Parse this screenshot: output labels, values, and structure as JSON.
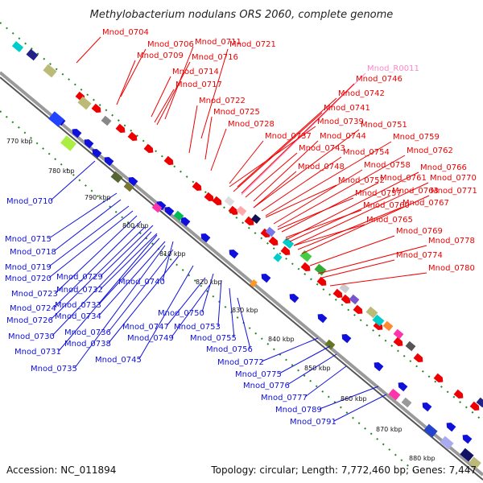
{
  "title": "Methylobacterium nodulans ORS 2060, complete genome",
  "footer": {
    "accession": "Accession: NC_011894",
    "summary": "Topology: circular; Length: 7,772,460 bp; Genes: 7,447"
  },
  "colors": {
    "forward": "#ee0000",
    "reverse": "#1010dd",
    "rna": "#ff88cc",
    "backbone": "#888888",
    "ticks": "#228822"
  },
  "kbp_labels": [
    "770 kbp",
    "780 kbp",
    "790 kbp",
    "800 kbp",
    "810 kbp",
    "820 kbp",
    "830 kbp",
    "840 kbp",
    "850 kbp",
    "860 kbp",
    "870 kbp",
    "880 kbp"
  ],
  "forward_labels": [
    {
      "text": "Mnod_0704",
      "type": "cds"
    },
    {
      "text": "Mnod_0706",
      "type": "cds"
    },
    {
      "text": "Mnod_0711",
      "type": "cds"
    },
    {
      "text": "Mnod_0721",
      "type": "cds"
    },
    {
      "text": "Mnod_0709",
      "type": "cds"
    },
    {
      "text": "Mnod_0716",
      "type": "cds"
    },
    {
      "text": "Mnod_0714",
      "type": "cds"
    },
    {
      "text": "Mnod_0717",
      "type": "cds"
    },
    {
      "text": "Mnod_R0011",
      "type": "rna"
    },
    {
      "text": "Mnod_0746",
      "type": "cds"
    },
    {
      "text": "Mnod_0742",
      "type": "cds"
    },
    {
      "text": "Mnod_0722",
      "type": "cds"
    },
    {
      "text": "Mnod_0741",
      "type": "cds"
    },
    {
      "text": "Mnod_0725",
      "type": "cds"
    },
    {
      "text": "Mnod_0739",
      "type": "cds"
    },
    {
      "text": "Mnod_0728",
      "type": "cds"
    },
    {
      "text": "Mnod_0751",
      "type": "cds"
    },
    {
      "text": "Mnod_0737",
      "type": "cds"
    },
    {
      "text": "Mnod_0744",
      "type": "cds"
    },
    {
      "text": "Mnod_0759",
      "type": "cds"
    },
    {
      "text": "Mnod_0743",
      "type": "cds"
    },
    {
      "text": "Mnod_0754",
      "type": "cds"
    },
    {
      "text": "Mnod_0762",
      "type": "cds"
    },
    {
      "text": "Mnod_0748",
      "type": "cds"
    },
    {
      "text": "Mnod_0758",
      "type": "cds"
    },
    {
      "text": "Mnod_0766",
      "type": "cds"
    },
    {
      "text": "Mnod_0752",
      "type": "cds"
    },
    {
      "text": "Mnod_0761",
      "type": "cds"
    },
    {
      "text": "Mnod_0770",
      "type": "cds"
    },
    {
      "text": "Mnod_0757",
      "type": "cds"
    },
    {
      "text": "Mnod_0763",
      "type": "cds"
    },
    {
      "text": "Mnod_0771",
      "type": "cds"
    },
    {
      "text": "Mnod_0760",
      "type": "cds"
    },
    {
      "text": "Mnod_0767",
      "type": "cds"
    },
    {
      "text": "Mnod_0765",
      "type": "cds"
    },
    {
      "text": "Mnod_0769",
      "type": "cds"
    },
    {
      "text": "Mnod_0778",
      "type": "cds"
    },
    {
      "text": "Mnod_0774",
      "type": "cds"
    },
    {
      "text": "Mnod_0780",
      "type": "cds"
    }
  ],
  "reverse_labels": [
    "Mnod_0710",
    "Mnod_0715",
    "Mnod_0718",
    "Mnod_0719",
    "Mnod_0720",
    "Mnod_0729",
    "Mnod_0732",
    "Mnod_0740",
    "Mnod_0723",
    "Mnod_0733",
    "Mnod_0724",
    "Mnod_0734",
    "Mnod_0726",
    "Mnod_0750",
    "Mnod_0747",
    "Mnod_0753",
    "Mnod_0736",
    "Mnod_0730",
    "Mnod_0749",
    "Mnod_0755",
    "Mnod_0738",
    "Mnod_0731",
    "Mnod_0756",
    "Mnod_0745",
    "Mnod_0735",
    "Mnod_0772",
    "Mnod_0775",
    "Mnod_0776",
    "Mnod_0777",
    "Mnod_0789",
    "Mnod_0791"
  ]
}
